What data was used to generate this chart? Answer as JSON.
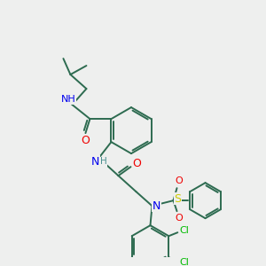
{
  "background_color": "#eeefee",
  "bond_color": "#2d6b50",
  "bond_width": 1.4,
  "atom_colors": {
    "N": "#0000ee",
    "O": "#ee0000",
    "S": "#cccc00",
    "Cl": "#00bb00",
    "H": "#4a9090",
    "C": "#2d6b50"
  },
  "figsize": [
    3.0,
    3.0
  ],
  "dpi": 100
}
